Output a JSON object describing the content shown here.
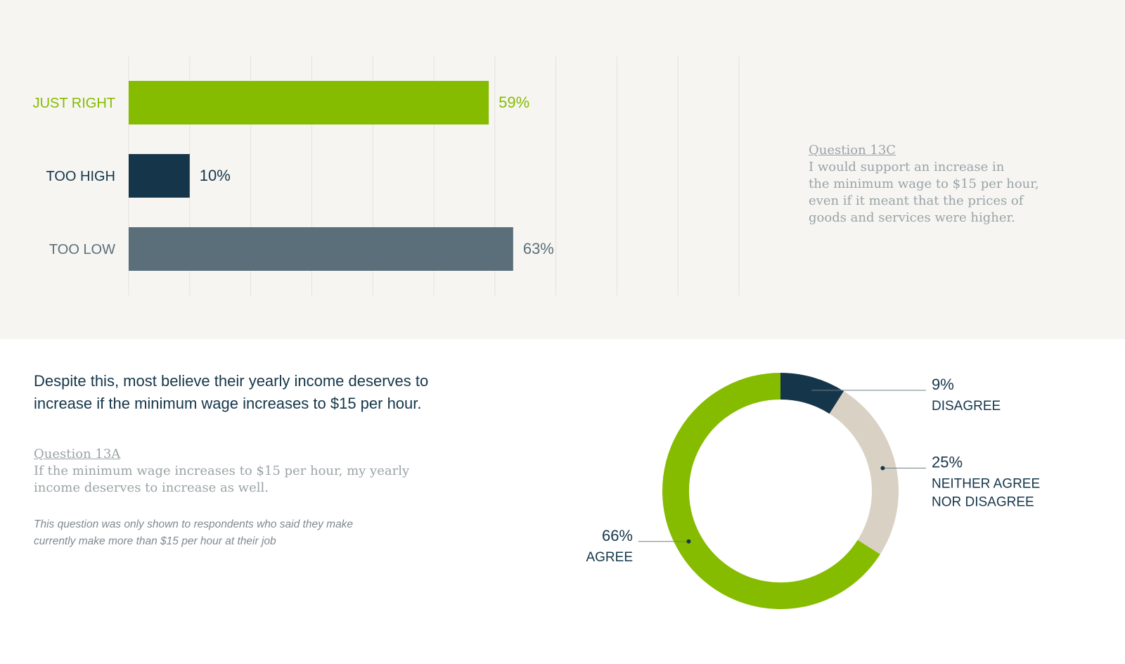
{
  "bar_section": {
    "question": {
      "link_label": "Question 13C",
      "lines": [
        "I would support an increase in",
        "the minimum wage to $15 per hour,",
        "even if it meant that the prices of",
        "goods and services were higher."
      ]
    }
  },
  "donut_section": {
    "headline_lines": [
      "Despite this, most believe their yearly income deserves to",
      "increase if the minimum wage increases to $15 per hour."
    ],
    "question": {
      "link_label": "Question 13A",
      "lines": [
        "If the minimum wage increases to $15 per hour, my yearly",
        "income deserves to increase as well."
      ]
    },
    "note_lines": [
      "This question was only shown to respondents who said they make",
      "currently make more than $15 per hour at their job"
    ]
  },
  "colors": {
    "green": "#86bc00",
    "navy": "#15364a",
    "slate": "#5b6f7a",
    "beige": "#d9d1c4",
    "grid": "#e3e1dc"
  },
  "chart_data": [
    {
      "type": "bar",
      "orientation": "horizontal",
      "categories": [
        "JUST RIGHT",
        "TOO HIGH",
        "TOO LOW"
      ],
      "values": [
        59,
        10,
        63
      ],
      "value_labels": [
        "59%",
        "10%",
        "63%"
      ],
      "colors": [
        "#86bc00",
        "#15364a",
        "#5b6f7a"
      ],
      "xlim": [
        0,
        100
      ],
      "grid": true,
      "legend": "none"
    },
    {
      "type": "pie",
      "donut": true,
      "slices": [
        {
          "label_lines": [
            "DISAGREE"
          ],
          "value": 9,
          "value_label": "9%",
          "color": "#15364a"
        },
        {
          "label_lines": [
            "NEITHER AGREE",
            "NOR DISAGREE"
          ],
          "value": 25,
          "value_label": "25%",
          "color": "#d9d1c4"
        },
        {
          "label_lines": [
            "AGREE"
          ],
          "value": 66,
          "value_label": "66%",
          "color": "#86bc00"
        }
      ],
      "legend": "none"
    }
  ]
}
